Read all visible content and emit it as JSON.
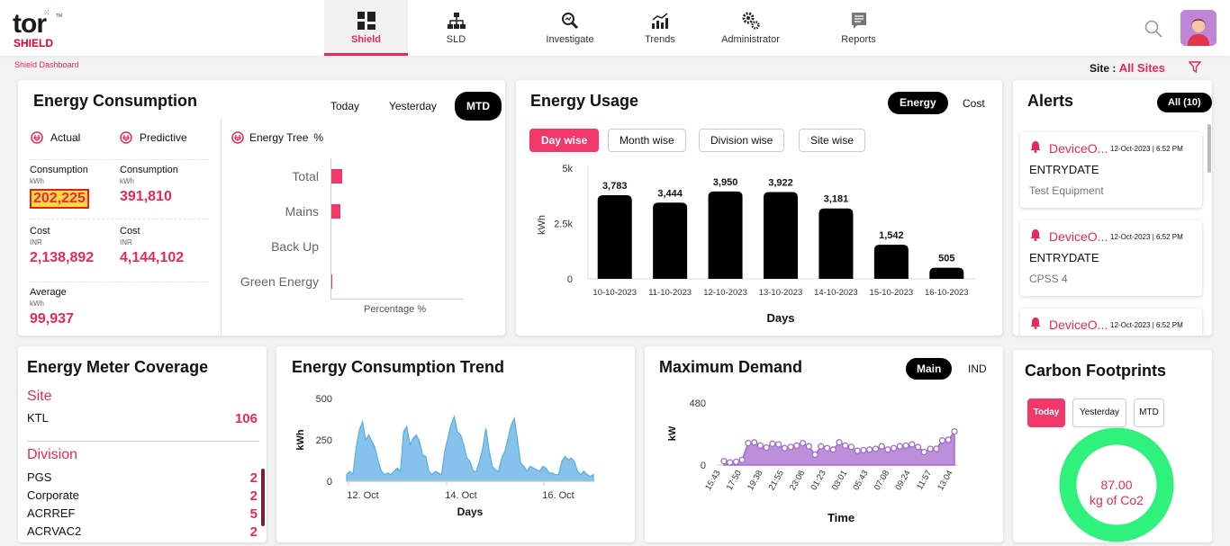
{
  "header": {
    "logo_top": "tor",
    "logo_bottom": "SHIELD",
    "nav": [
      {
        "label": "Shield",
        "icon": "dashboard-grid-icon",
        "active": true
      },
      {
        "label": "SLD",
        "icon": "hierarchy-icon",
        "active": false
      },
      {
        "label": "Investigate",
        "icon": "investigate-icon",
        "active": false
      },
      {
        "label": "Trends",
        "icon": "trend-chart-icon",
        "active": false
      },
      {
        "label": "Administrator",
        "icon": "gears-icon",
        "active": false
      },
      {
        "label": "Reports",
        "icon": "report-icon",
        "active": false
      }
    ]
  },
  "breadcrumb": "Shield Dashboard",
  "site": {
    "label": "Site :",
    "value": "All Sites"
  },
  "energy_consumption": {
    "title": "Energy Consumption",
    "filters": [
      "Today",
      "Yesterday",
      "MTD"
    ],
    "active_filter": "MTD",
    "actual": {
      "title": "Actual",
      "consumption_label": "Consumption",
      "consumption_unit": "kWh",
      "consumption_value": "202,225",
      "cost_label": "Cost",
      "cost_unit": "INR",
      "cost_value": "2,138,892",
      "average_label": "Average",
      "average_unit": "kWh",
      "average_value": "99,937"
    },
    "predictive": {
      "title": "Predictive",
      "consumption_label": "Consumption",
      "consumption_unit": "kWh",
      "consumption_value": "391,810",
      "cost_label": "Cost",
      "cost_unit": "INR",
      "cost_value": "4,144,102"
    },
    "energy_tree": {
      "title": "Energy Tree",
      "unit": "%",
      "xlabel": "Percentage %",
      "categories": [
        "Total",
        "Mains",
        "Back Up",
        "Green Energy"
      ],
      "values": [
        12,
        10,
        0,
        1
      ]
    }
  },
  "energy_usage": {
    "title": "Energy Usage",
    "toggles": [
      "Energy",
      "Cost"
    ],
    "active_toggle": "Energy",
    "tabs": [
      "Day wise",
      "Month wise",
      "Division wise",
      "Site wise"
    ],
    "active_tab": "Day wise",
    "chart_data": {
      "type": "bar",
      "categories": [
        "10-10-2023",
        "11-10-2023",
        "12-10-2023",
        "13-10-2023",
        "14-10-2023",
        "15-10-2023",
        "16-10-2023"
      ],
      "values": [
        3783,
        3444,
        3950,
        3922,
        3181,
        1542,
        505
      ],
      "value_labels": [
        "3,783",
        "3,444",
        "3,950",
        "3,922",
        "3,181",
        "1,542",
        "505"
      ],
      "ylabel": "kWh",
      "xlabel": "Days",
      "yticks": [
        "0",
        "2.5k",
        "5k"
      ],
      "ylim": [
        0,
        5000
      ],
      "color": "#000000"
    }
  },
  "alerts": {
    "title": "Alerts",
    "filter": "All (10)",
    "items": [
      {
        "name": "DeviceO...",
        "time": "12-Oct-2023 | 6:52 PM",
        "type": "ENTRYDATE",
        "device": "Test Equipment"
      },
      {
        "name": "DeviceO...",
        "time": "12-Oct-2023 | 6:52 PM",
        "type": "ENTRYDATE",
        "device": "CPSS 4"
      },
      {
        "name": "DeviceO...",
        "time": "12-Oct-2023 | 6:52 PM",
        "type": "",
        "device": ""
      }
    ]
  },
  "meter_coverage": {
    "title": "Energy Meter Coverage",
    "site_heading": "Site",
    "sites": [
      {
        "name": "KTL",
        "count": "106"
      }
    ],
    "division_heading": "Division",
    "divisions": [
      {
        "name": "PGS",
        "count": "2"
      },
      {
        "name": "Corporate",
        "count": "2"
      },
      {
        "name": "ACRREF",
        "count": "5"
      },
      {
        "name": "ACRVAC2",
        "count": "2"
      }
    ]
  },
  "consumption_trend": {
    "title": "Energy Consumption Trend",
    "chart_data": {
      "type": "area",
      "ylabel": "kWh",
      "xlabel": "Days",
      "yticks": [
        "0",
        "250",
        "500"
      ],
      "ylim": [
        0,
        500
      ],
      "xticks": [
        "12. Oct",
        "14. Oct",
        "16. Oct"
      ],
      "color": "#7fbfea",
      "values": [
        40,
        60,
        40,
        200,
        310,
        360,
        250,
        280,
        240,
        200,
        120,
        60,
        40,
        50,
        40,
        60,
        80,
        60,
        300,
        330,
        220,
        260,
        280,
        240,
        160,
        150,
        60,
        40,
        60,
        50,
        40,
        180,
        260,
        340,
        390,
        300,
        280,
        220,
        140,
        120,
        60,
        60,
        120,
        200,
        320,
        190,
        90,
        70,
        60,
        140,
        180,
        260,
        340,
        380,
        250,
        110,
        90,
        60,
        90,
        80,
        70,
        60,
        90,
        80,
        50,
        50,
        40,
        40,
        120,
        150,
        130,
        140,
        120,
        60,
        40,
        60,
        40,
        30,
        40
      ]
    }
  },
  "maximum_demand": {
    "title": "Maximum Demand",
    "toggles": [
      "Main",
      "IND"
    ],
    "active_toggle": "Main",
    "chart_data": {
      "type": "area",
      "ylabel": "kW",
      "xlabel": "Time",
      "yticks": [
        "0",
        "480"
      ],
      "ylim": [
        0,
        480
      ],
      "xticks": [
        "15:43",
        "17:50",
        "19:38",
        "21:55",
        "23:06",
        "01:23",
        "03:01",
        "05:43",
        "07:08",
        "09:24",
        "11:57",
        "13:04"
      ],
      "color": "#b583d6",
      "values": [
        30,
        20,
        25,
        40,
        170,
        175,
        150,
        135,
        165,
        160,
        130,
        140,
        150,
        170,
        145,
        80,
        145,
        130,
        120,
        175,
        150,
        140,
        110,
        115,
        120,
        125,
        145,
        120,
        130,
        145,
        150,
        160,
        140,
        100,
        125,
        125,
        190,
        195,
        260
      ]
    }
  },
  "carbon": {
    "title": "Carbon Footprints",
    "tabs": [
      "Today",
      "Yesterday",
      "MTD"
    ],
    "active_tab": "Today",
    "value": "87.00",
    "unit": "kg of Co2",
    "ring_color": "#2ff27c"
  }
}
